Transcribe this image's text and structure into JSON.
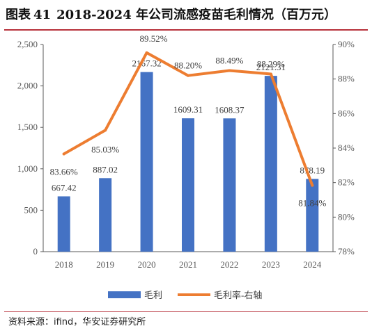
{
  "figure": {
    "label": "图表",
    "number": "41",
    "title": "2018-2024 年公司流感疫苗毛利情况（百万元）"
  },
  "source": "资料来源：ifind，华安证券研究所",
  "colors": {
    "bar": "#4472c4",
    "line": "#ed7d31",
    "axis": "#595959",
    "rule": "#b7313b"
  },
  "chart_data": {
    "type": "bar",
    "categories": [
      "2018",
      "2019",
      "2020",
      "2021",
      "2022",
      "2023",
      "2024"
    ],
    "series": [
      {
        "name": "毛利",
        "type": "bar",
        "axis": "left",
        "values": [
          667.42,
          887.02,
          2167.32,
          1609.31,
          1608.37,
          2121.31,
          878.19
        ],
        "labels": [
          "667.42",
          "887.02",
          "2167.32",
          "1609.31",
          "1608.37",
          "2121.31",
          "878.19"
        ]
      },
      {
        "name": "毛利率-右轴",
        "type": "line",
        "axis": "right",
        "values": [
          83.66,
          85.03,
          89.52,
          88.2,
          88.49,
          88.29,
          81.84
        ],
        "labels": [
          "83.66%",
          "85.03%",
          "89.52%",
          "88.20%",
          "88.49%",
          "88.29%",
          "81.84%"
        ]
      }
    ],
    "y_left": {
      "min": 0,
      "max": 2500,
      "ticks": [
        "0",
        "500",
        "1,000",
        "1,500",
        "2,000",
        "2,500"
      ]
    },
    "y_right": {
      "min": 78,
      "max": 90,
      "ticks": [
        "78%",
        "80%",
        "82%",
        "84%",
        "86%",
        "88%",
        "90%"
      ]
    },
    "grid": false,
    "legend_position": "bottom"
  }
}
